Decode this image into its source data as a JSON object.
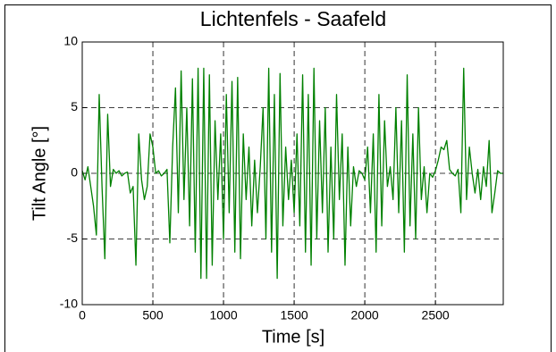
{
  "chart_data": {
    "type": "line",
    "title": "Lichtenfels - Saafeld",
    "x_label": "Time [s]",
    "y_label": "Tilt Angle [°]",
    "xlim": [
      0,
      2980
    ],
    "ylim": [
      -10,
      10
    ],
    "xticks": [
      0,
      500,
      1000,
      1500,
      2000,
      2500
    ],
    "yticks": [
      -10,
      -5,
      0,
      5,
      10
    ],
    "grid": true,
    "series": [
      {
        "color": "#008000",
        "x": [
          0,
          20,
          40,
          60,
          80,
          100,
          120,
          140,
          160,
          180,
          200,
          220,
          240,
          260,
          280,
          300,
          320,
          340,
          360,
          380,
          400,
          420,
          440,
          460,
          480,
          500,
          520,
          540,
          560,
          580,
          600,
          620,
          640,
          660,
          680,
          700,
          720,
          740,
          760,
          780,
          800,
          820,
          840,
          860,
          880,
          900,
          920,
          940,
          960,
          980,
          1000,
          1020,
          1040,
          1060,
          1080,
          1100,
          1120,
          1140,
          1160,
          1180,
          1200,
          1220,
          1240,
          1260,
          1280,
          1300,
          1320,
          1340,
          1360,
          1380,
          1400,
          1420,
          1440,
          1460,
          1480,
          1500,
          1520,
          1540,
          1560,
          1580,
          1600,
          1620,
          1640,
          1660,
          1680,
          1700,
          1720,
          1740,
          1760,
          1780,
          1800,
          1820,
          1840,
          1860,
          1880,
          1900,
          1920,
          1940,
          1960,
          1980,
          2000,
          2020,
          2040,
          2060,
          2080,
          2100,
          2120,
          2140,
          2160,
          2180,
          2200,
          2220,
          2240,
          2260,
          2280,
          2300,
          2320,
          2340,
          2360,
          2380,
          2400,
          2420,
          2440,
          2460,
          2480,
          2500,
          2520,
          2540,
          2560,
          2580,
          2600,
          2620,
          2640,
          2660,
          2680,
          2700,
          2720,
          2740,
          2760,
          2780,
          2800,
          2820,
          2840,
          2860,
          2880,
          2900,
          2920,
          2940,
          2960,
          2980
        ],
        "values": [
          0.2,
          -0.5,
          0.5,
          -1,
          -2.5,
          -4.7,
          6.0,
          -1,
          -6.5,
          4.5,
          -1,
          0.3,
          0,
          0.2,
          -0.2,
          0,
          0.1,
          -1.5,
          -1,
          -7,
          3,
          -0.5,
          -2,
          -1,
          3,
          2,
          0,
          0.2,
          -0.2,
          0,
          0.3,
          -5.3,
          2,
          6.5,
          -3,
          7.8,
          -2,
          5,
          -4,
          7.2,
          -6,
          8,
          -8,
          8,
          -8,
          7.5,
          -7,
          4,
          -2,
          3,
          -5,
          6,
          -3,
          7,
          -6,
          7.3,
          -6.5,
          3,
          -2,
          2,
          -4,
          1,
          -3,
          0.5,
          5,
          -5,
          8,
          -6,
          6,
          -8,
          7.6,
          -4,
          2,
          -2,
          1,
          -3,
          3,
          -4,
          7.5,
          -6,
          6,
          -7,
          8,
          -5,
          4,
          -3,
          5,
          -6,
          2,
          -5,
          6,
          -2,
          3,
          -7,
          2,
          -4,
          0.5,
          -1,
          0.2,
          0,
          -0.5,
          2,
          -3,
          3,
          -6,
          6,
          -4,
          4,
          -1,
          0.5,
          -2,
          5,
          -3,
          4,
          -6,
          7.5,
          -4,
          3,
          -5,
          5,
          -2,
          0.5,
          -3,
          0,
          -0.3,
          0.2,
          1,
          2,
          1.8,
          2.5,
          0.3,
          0,
          -0.2,
          0.3,
          -3,
          8,
          -2,
          2,
          0,
          -1.5,
          0.3,
          -2,
          0.5,
          -1,
          2.5,
          -3,
          -1.5,
          0.2,
          0,
          0
        ]
      }
    ]
  }
}
